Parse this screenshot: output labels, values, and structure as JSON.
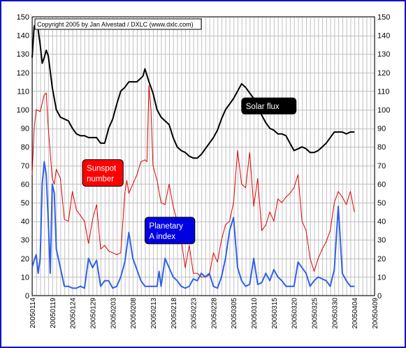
{
  "chart_data": {
    "type": "line",
    "title": "",
    "copyright": "Copyright 2005 by Jan Alvestad / DXLC (www.dxlc.com)",
    "ylim": [
      0,
      150
    ],
    "ytick_step": 10,
    "ytick_labels": [
      "0",
      "10",
      "20",
      "30",
      "40",
      "50",
      "60",
      "70",
      "80",
      "90",
      "100",
      "110",
      "120",
      "130",
      "140",
      "150"
    ],
    "xlim": [
      0,
      85
    ],
    "x_tick_labels": [
      {
        "x": 0,
        "label": "20050114"
      },
      {
        "x": 5,
        "label": "20050119"
      },
      {
        "x": 10,
        "label": "20050124"
      },
      {
        "x": 15,
        "label": "20050129"
      },
      {
        "x": 20,
        "label": "20050203"
      },
      {
        "x": 25,
        "label": "20050208"
      },
      {
        "x": 30,
        "label": "20050213"
      },
      {
        "x": 35,
        "label": "20050218"
      },
      {
        "x": 40,
        "label": "20050223"
      },
      {
        "x": 45,
        "label": "20050228"
      },
      {
        "x": 50,
        "label": "20050305"
      },
      {
        "x": 55,
        "label": "20050310"
      },
      {
        "x": 60,
        "label": "20050315"
      },
      {
        "x": 65,
        "label": "20050320"
      },
      {
        "x": 70,
        "label": "20050325"
      },
      {
        "x": 75,
        "label": "20050330"
      },
      {
        "x": 80,
        "label": "20050404"
      },
      {
        "x": 85,
        "label": "20050409"
      }
    ],
    "grid": true,
    "series": [
      {
        "name": "Solar flux",
        "color": "#000000",
        "points": [
          [
            0,
            128
          ],
          [
            0.5,
            145
          ],
          [
            1,
            146
          ],
          [
            1.5,
            143
          ],
          [
            2,
            135
          ],
          [
            2.5,
            125
          ],
          [
            3,
            128
          ],
          [
            3.5,
            132
          ],
          [
            4,
            129
          ],
          [
            5,
            112
          ],
          [
            6,
            100
          ],
          [
            7,
            96
          ],
          [
            8,
            95
          ],
          [
            9,
            94
          ],
          [
            10,
            90
          ],
          [
            11,
            87
          ],
          [
            12,
            86
          ],
          [
            13,
            86
          ],
          [
            14,
            85
          ],
          [
            15,
            85
          ],
          [
            16,
            85
          ],
          [
            17,
            82
          ],
          [
            18,
            82
          ],
          [
            19,
            90
          ],
          [
            20,
            95
          ],
          [
            21,
            103
          ],
          [
            22,
            110
          ],
          [
            23,
            112
          ],
          [
            24,
            115
          ],
          [
            25,
            115
          ],
          [
            26,
            115
          ],
          [
            27,
            117
          ],
          [
            27.5,
            118
          ],
          [
            28,
            122
          ],
          [
            29,
            115
          ],
          [
            30,
            109
          ],
          [
            31,
            100
          ],
          [
            32,
            96
          ],
          [
            33,
            94
          ],
          [
            34,
            92
          ],
          [
            35,
            85
          ],
          [
            36,
            80
          ],
          [
            37,
            78
          ],
          [
            38,
            77
          ],
          [
            39,
            75
          ],
          [
            40,
            74
          ],
          [
            41,
            74
          ],
          [
            42,
            76
          ],
          [
            43,
            79
          ],
          [
            44,
            82
          ],
          [
            45,
            85
          ],
          [
            46,
            89
          ],
          [
            47,
            95
          ],
          [
            48,
            100
          ],
          [
            49,
            103
          ],
          [
            50,
            106
          ],
          [
            51,
            110
          ],
          [
            52,
            114
          ],
          [
            53,
            112
          ],
          [
            54,
            109
          ],
          [
            55,
            106
          ],
          [
            56,
            102
          ],
          [
            57,
            97
          ],
          [
            58,
            93
          ],
          [
            59,
            90
          ],
          [
            60,
            89
          ],
          [
            61,
            87
          ],
          [
            62,
            87
          ],
          [
            63,
            86
          ],
          [
            64,
            82
          ],
          [
            65,
            78
          ],
          [
            66,
            79
          ],
          [
            67,
            80
          ],
          [
            68,
            79
          ],
          [
            69,
            77
          ],
          [
            70,
            77
          ],
          [
            71,
            78
          ],
          [
            72,
            80
          ],
          [
            73,
            82
          ],
          [
            74,
            85
          ],
          [
            75,
            88
          ],
          [
            76,
            88
          ],
          [
            77,
            88
          ],
          [
            78,
            87
          ],
          [
            79,
            88
          ],
          [
            80,
            88
          ]
        ]
      },
      {
        "name": "Sunspot number",
        "color": "#e00000",
        "points": [
          [
            0,
            65
          ],
          [
            0.5,
            90
          ],
          [
            1,
            100
          ],
          [
            2,
            99
          ],
          [
            3,
            108
          ],
          [
            3.5,
            109
          ],
          [
            4,
            90
          ],
          [
            5,
            63
          ],
          [
            5.5,
            60
          ],
          [
            6,
            68
          ],
          [
            7,
            63
          ],
          [
            8,
            41
          ],
          [
            9,
            40
          ],
          [
            10,
            56
          ],
          [
            11,
            46
          ],
          [
            12,
            43
          ],
          [
            13,
            40
          ],
          [
            14,
            28
          ],
          [
            15,
            41
          ],
          [
            16,
            49
          ],
          [
            17,
            25
          ],
          [
            18,
            27
          ],
          [
            19,
            24
          ],
          [
            20,
            23
          ],
          [
            21,
            22
          ],
          [
            22,
            23
          ],
          [
            23,
            55
          ],
          [
            23.5,
            62
          ],
          [
            24,
            55
          ],
          [
            25,
            60
          ],
          [
            26,
            65
          ],
          [
            27,
            72
          ],
          [
            28,
            73
          ],
          [
            28.5,
            72
          ],
          [
            29,
            113
          ],
          [
            29.5,
            100
          ],
          [
            30,
            70
          ],
          [
            31,
            62
          ],
          [
            32,
            50
          ],
          [
            33,
            49
          ],
          [
            34,
            60
          ],
          [
            35,
            48
          ],
          [
            36,
            40
          ],
          [
            37,
            30
          ],
          [
            38,
            15
          ],
          [
            39,
            27
          ],
          [
            40,
            12
          ],
          [
            41,
            12
          ],
          [
            42,
            10
          ],
          [
            43,
            10
          ],
          [
            44,
            11
          ],
          [
            45,
            23
          ],
          [
            46,
            18
          ],
          [
            47,
            30
          ],
          [
            48,
            38
          ],
          [
            49,
            40
          ],
          [
            50,
            50
          ],
          [
            51,
            78
          ],
          [
            52,
            60
          ],
          [
            53,
            58
          ],
          [
            54,
            77
          ],
          [
            55,
            48
          ],
          [
            56,
            63
          ],
          [
            57,
            35
          ],
          [
            58,
            38
          ],
          [
            59,
            45
          ],
          [
            60,
            40
          ],
          [
            61,
            52
          ],
          [
            62,
            50
          ],
          [
            63,
            53
          ],
          [
            64,
            55
          ],
          [
            65,
            58
          ],
          [
            66,
            65
          ],
          [
            67,
            40
          ],
          [
            68,
            35
          ],
          [
            69,
            20
          ],
          [
            70,
            13
          ],
          [
            71,
            20
          ],
          [
            72,
            25
          ],
          [
            73,
            29
          ],
          [
            74,
            35
          ],
          [
            75,
            50
          ],
          [
            76,
            56
          ],
          [
            77,
            53
          ],
          [
            78,
            49
          ],
          [
            79,
            56
          ],
          [
            80,
            45
          ]
        ]
      },
      {
        "name": "Planetary A index",
        "color": "#3060e8",
        "points": [
          [
            0,
            15
          ],
          [
            0.5,
            19
          ],
          [
            1,
            22
          ],
          [
            1.5,
            12
          ],
          [
            2,
            20
          ],
          [
            2.5,
            60
          ],
          [
            3,
            72
          ],
          [
            3.5,
            65
          ],
          [
            4,
            40
          ],
          [
            4.5,
            12
          ],
          [
            5,
            60
          ],
          [
            5.5,
            55
          ],
          [
            6,
            25
          ],
          [
            7,
            15
          ],
          [
            8,
            5
          ],
          [
            9,
            5
          ],
          [
            10,
            4
          ],
          [
            11,
            4
          ],
          [
            12,
            5
          ],
          [
            13,
            4
          ],
          [
            14,
            20
          ],
          [
            15,
            15
          ],
          [
            16,
            19
          ],
          [
            17,
            5
          ],
          [
            18,
            8
          ],
          [
            19,
            8
          ],
          [
            20,
            4
          ],
          [
            21,
            5
          ],
          [
            22,
            10
          ],
          [
            23,
            18
          ],
          [
            24,
            34
          ],
          [
            25,
            20
          ],
          [
            26,
            14
          ],
          [
            27,
            8
          ],
          [
            28,
            5
          ],
          [
            29,
            5
          ],
          [
            30,
            5
          ],
          [
            31,
            5
          ],
          [
            31.5,
            13
          ],
          [
            32,
            5
          ],
          [
            33,
            20
          ],
          [
            34,
            15
          ],
          [
            35,
            10
          ],
          [
            36,
            8
          ],
          [
            37,
            5
          ],
          [
            38,
            4
          ],
          [
            39,
            5
          ],
          [
            40,
            9
          ],
          [
            41,
            8
          ],
          [
            42,
            12
          ],
          [
            43,
            10
          ],
          [
            44,
            12
          ],
          [
            45,
            5
          ],
          [
            46,
            4
          ],
          [
            47,
            10
          ],
          [
            48,
            20
          ],
          [
            49,
            35
          ],
          [
            50,
            42
          ],
          [
            51,
            15
          ],
          [
            52,
            8
          ],
          [
            53,
            5
          ],
          [
            54,
            6
          ],
          [
            55,
            20
          ],
          [
            56,
            6
          ],
          [
            57,
            7
          ],
          [
            58,
            12
          ],
          [
            59,
            8
          ],
          [
            60,
            14
          ],
          [
            61,
            10
          ],
          [
            62,
            8
          ],
          [
            63,
            5
          ],
          [
            64,
            5
          ],
          [
            65,
            5
          ],
          [
            66,
            18
          ],
          [
            67,
            15
          ],
          [
            68,
            12
          ],
          [
            69,
            5
          ],
          [
            70,
            8
          ],
          [
            71,
            10
          ],
          [
            72,
            9
          ],
          [
            73,
            8
          ],
          [
            74,
            5
          ],
          [
            75,
            14
          ],
          [
            76,
            48
          ],
          [
            77,
            12
          ],
          [
            78,
            8
          ],
          [
            79,
            5
          ],
          [
            80,
            5
          ]
        ]
      }
    ],
    "annotations": [
      {
        "text_lines": [
          "Solar flux"
        ],
        "bg": "#000000",
        "fg": "#ffffff",
        "x": 52,
        "y": 102
      },
      {
        "text_lines": [
          "Sunspot",
          "number"
        ],
        "bg": "#ff0000",
        "fg": "#ffffff",
        "x": 12.5,
        "y": 66
      },
      {
        "text_lines": [
          "Planetary",
          "A index"
        ],
        "bg": "#0000e0",
        "fg": "#ffffff",
        "x": 28,
        "y": 35
      }
    ]
  }
}
